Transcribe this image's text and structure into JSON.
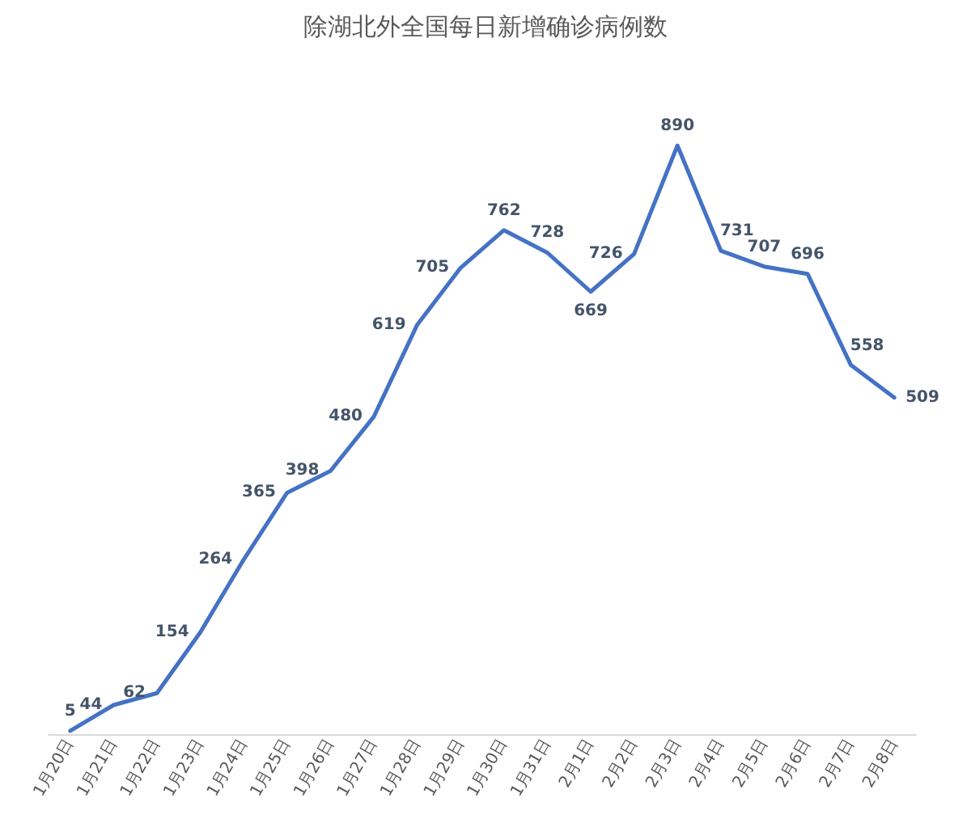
{
  "chart_data": {
    "type": "line",
    "title": "除湖北外全国每日新增确诊病例数",
    "categories": [
      "1月20日",
      "1月21日",
      "1月22日",
      "1月23日",
      "1月24日",
      "1月25日",
      "1月26日",
      "1月27日",
      "1月28日",
      "1月29日",
      "1月30日",
      "1月31日",
      "2月1日",
      "2月2日",
      "2月3日",
      "2月4日",
      "2月5日",
      "2月6日",
      "2月7日",
      "2月8日"
    ],
    "series": [
      {
        "color": "#4472c4",
        "values": [
          5,
          44,
          62,
          154,
          264,
          365,
          398,
          480,
          619,
          705,
          762,
          728,
          669,
          726,
          890,
          731,
          707,
          696,
          558,
          509
        ]
      }
    ],
    "data_labels": true,
    "marker": "none",
    "line_style": "solid",
    "grid": false
  }
}
